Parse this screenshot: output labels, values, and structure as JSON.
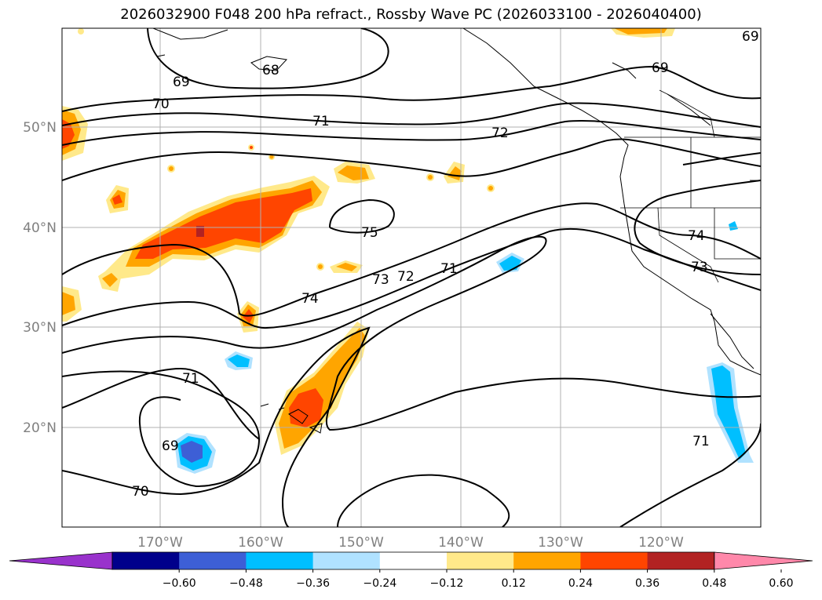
{
  "title": "2026032900 F048 200 hPa refract., Rossby Wave PC (2026033100 - 2026040400)",
  "latitude_labels": [
    "50°N",
    "40°N",
    "30°N",
    "20°N"
  ],
  "longitude_labels": [
    "170°W",
    "160°W",
    "150°W",
    "140°W",
    "130°W",
    "120°W"
  ],
  "colorbar": {
    "ticks": [
      "−0.60",
      "−0.48",
      "−0.36",
      "−0.24",
      "−0.12",
      "0.12",
      "0.24",
      "0.36",
      "0.48",
      "0.60"
    ],
    "colors": [
      "#9932cc",
      "#00008b",
      "#3d5fd6",
      "#00bfff",
      "#b0e2ff",
      "#ffffff",
      "#ffe98a",
      "#ffa500",
      "#ff4500",
      "#b22222",
      "#ff88aa"
    ]
  },
  "contour_labels": [
    "69",
    "68",
    "70",
    "71",
    "72",
    "75",
    "74",
    "73",
    "72",
    "71",
    "71",
    "69",
    "70",
    "74",
    "73",
    "71",
    "69",
    "69"
  ],
  "colors": {
    "land_outline": "#000000",
    "grid": "#b0b0b0",
    "contour": "#000000"
  }
}
